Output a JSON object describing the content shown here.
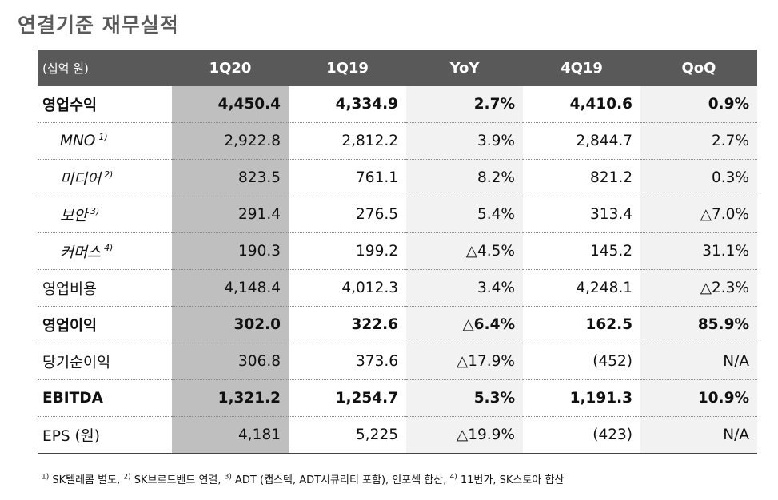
{
  "title": "연결기준 재무실적",
  "table": {
    "headers": [
      "(십억 원)",
      "1Q20",
      "1Q19",
      "YoY",
      "4Q19",
      "QoQ"
    ],
    "rows": [
      {
        "label": "영업수익",
        "fn": "",
        "sub": false,
        "bold": true,
        "values": [
          "4,450.4",
          "4,334.9",
          "2.7%",
          "4,410.6",
          "0.9%"
        ]
      },
      {
        "label": "MNO",
        "fn": "1)",
        "sub": true,
        "bold": false,
        "values": [
          "2,922.8",
          "2,812.2",
          "3.9%",
          "2,844.7",
          "2.7%"
        ]
      },
      {
        "label": "미디어",
        "fn": "2)",
        "sub": true,
        "bold": false,
        "values": [
          "823.5",
          "761.1",
          "8.2%",
          "821.2",
          "0.3%"
        ]
      },
      {
        "label": "보안",
        "fn": "3)",
        "sub": true,
        "bold": false,
        "values": [
          "291.4",
          "276.5",
          "5.4%",
          "313.4",
          "△7.0%"
        ]
      },
      {
        "label": "커머스",
        "fn": "4)",
        "sub": true,
        "bold": false,
        "values": [
          "190.3",
          "199.2",
          "△4.5%",
          "145.2",
          "31.1%"
        ]
      },
      {
        "label": "영업비용",
        "fn": "",
        "sub": false,
        "bold": false,
        "values": [
          "4,148.4",
          "4,012.3",
          "3.4%",
          "4,248.1",
          "△2.3%"
        ]
      },
      {
        "label": "영업이익",
        "fn": "",
        "sub": false,
        "bold": true,
        "values": [
          "302.0",
          "322.6",
          "△6.4%",
          "162.5",
          "85.9%"
        ]
      },
      {
        "label": "당기순이익",
        "fn": "",
        "sub": false,
        "bold": false,
        "values": [
          "306.8",
          "373.6",
          "△17.9%",
          "(452)",
          "N/A"
        ]
      },
      {
        "label": "EBITDA",
        "fn": "",
        "sub": false,
        "bold": true,
        "values": [
          "1,321.2",
          "1,254.7",
          "5.3%",
          "1,191.3",
          "10.9%"
        ]
      },
      {
        "label": "EPS (원)",
        "fn": "",
        "sub": false,
        "bold": false,
        "values": [
          "4,181",
          "5,225",
          "△19.9%",
          "(423)",
          "N/A"
        ]
      }
    ]
  },
  "footnote": [
    {
      "n": "1)",
      "text": " SK텔레콤 별도, "
    },
    {
      "n": "2)",
      "text": " SK브로드밴드 연결, "
    },
    {
      "n": "3)",
      "text": " ADT (캡스텍, ADT시큐리티 포함), 인포섹 합산, "
    },
    {
      "n": "4)",
      "text": " 11번가, SK스토아 합산"
    }
  ]
}
